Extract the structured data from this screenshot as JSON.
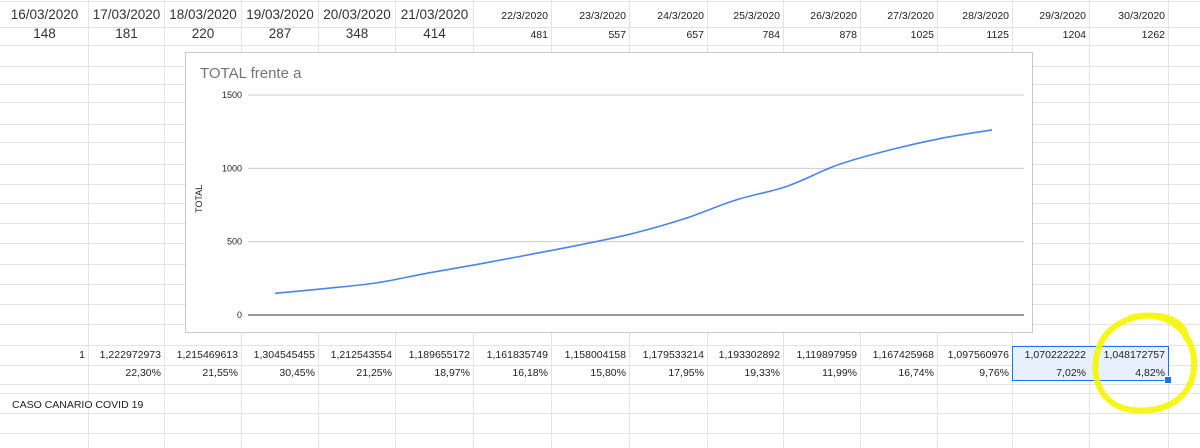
{
  "sheet": {
    "dates": [
      "16/03/2020",
      "17/03/2020",
      "18/03/2020",
      "19/03/2020",
      "20/03/2020",
      "21/03/2020",
      "22/3/2020",
      "23/3/2020",
      "24/3/2020",
      "25/3/2020",
      "26/3/2020",
      "27/3/2020",
      "28/3/2020",
      "29/3/2020",
      "30/3/2020"
    ],
    "totals": [
      "148",
      "181",
      "220",
      "287",
      "348",
      "414",
      "481",
      "557",
      "657",
      "784",
      "878",
      "1025",
      "1125",
      "1204",
      "1262"
    ],
    "ratios": [
      "1",
      "1,222972973",
      "1,215469613",
      "1,304545455",
      "1,212543554",
      "1,189655172",
      "1,161835749",
      "1,158004158",
      "1,179533214",
      "1,193302892",
      "1,119897959",
      "1,167425968",
      "1,097560976",
      "1,070222222",
      "1,048172757"
    ],
    "percents": [
      "",
      "22,30%",
      "21,55%",
      "30,45%",
      "21,25%",
      "18,97%",
      "16,18%",
      "15,80%",
      "17,95%",
      "19,33%",
      "11,99%",
      "16,74%",
      "9,76%",
      "7,02%",
      "4,82%"
    ],
    "note": "CASO CANARIO COVID 19"
  },
  "colors": {
    "line": "#4a86e8",
    "selection": "#1a73e8",
    "highlight": "#f5f500",
    "gridline": "#e2e3e3"
  },
  "chart_data": {
    "type": "line",
    "title": "TOTAL frente a",
    "ylabel": "TOTAL",
    "xlabel": "",
    "ylim": [
      0,
      1500
    ],
    "yticks": [
      "0",
      "500",
      "1000",
      "1500"
    ],
    "x": [
      "16/03/2020",
      "17/03/2020",
      "18/03/2020",
      "19/03/2020",
      "20/03/2020",
      "21/03/2020",
      "22/3/2020",
      "23/3/2020",
      "24/3/2020",
      "25/3/2020",
      "26/3/2020",
      "27/3/2020",
      "28/3/2020",
      "29/3/2020",
      "30/3/2020"
    ],
    "series": [
      {
        "values": [
          148,
          181,
          220,
          287,
          348,
          414,
          481,
          557,
          657,
          784,
          878,
          1025,
          1125,
          1204,
          1262
        ]
      }
    ],
    "grid": true,
    "legend": "none"
  }
}
